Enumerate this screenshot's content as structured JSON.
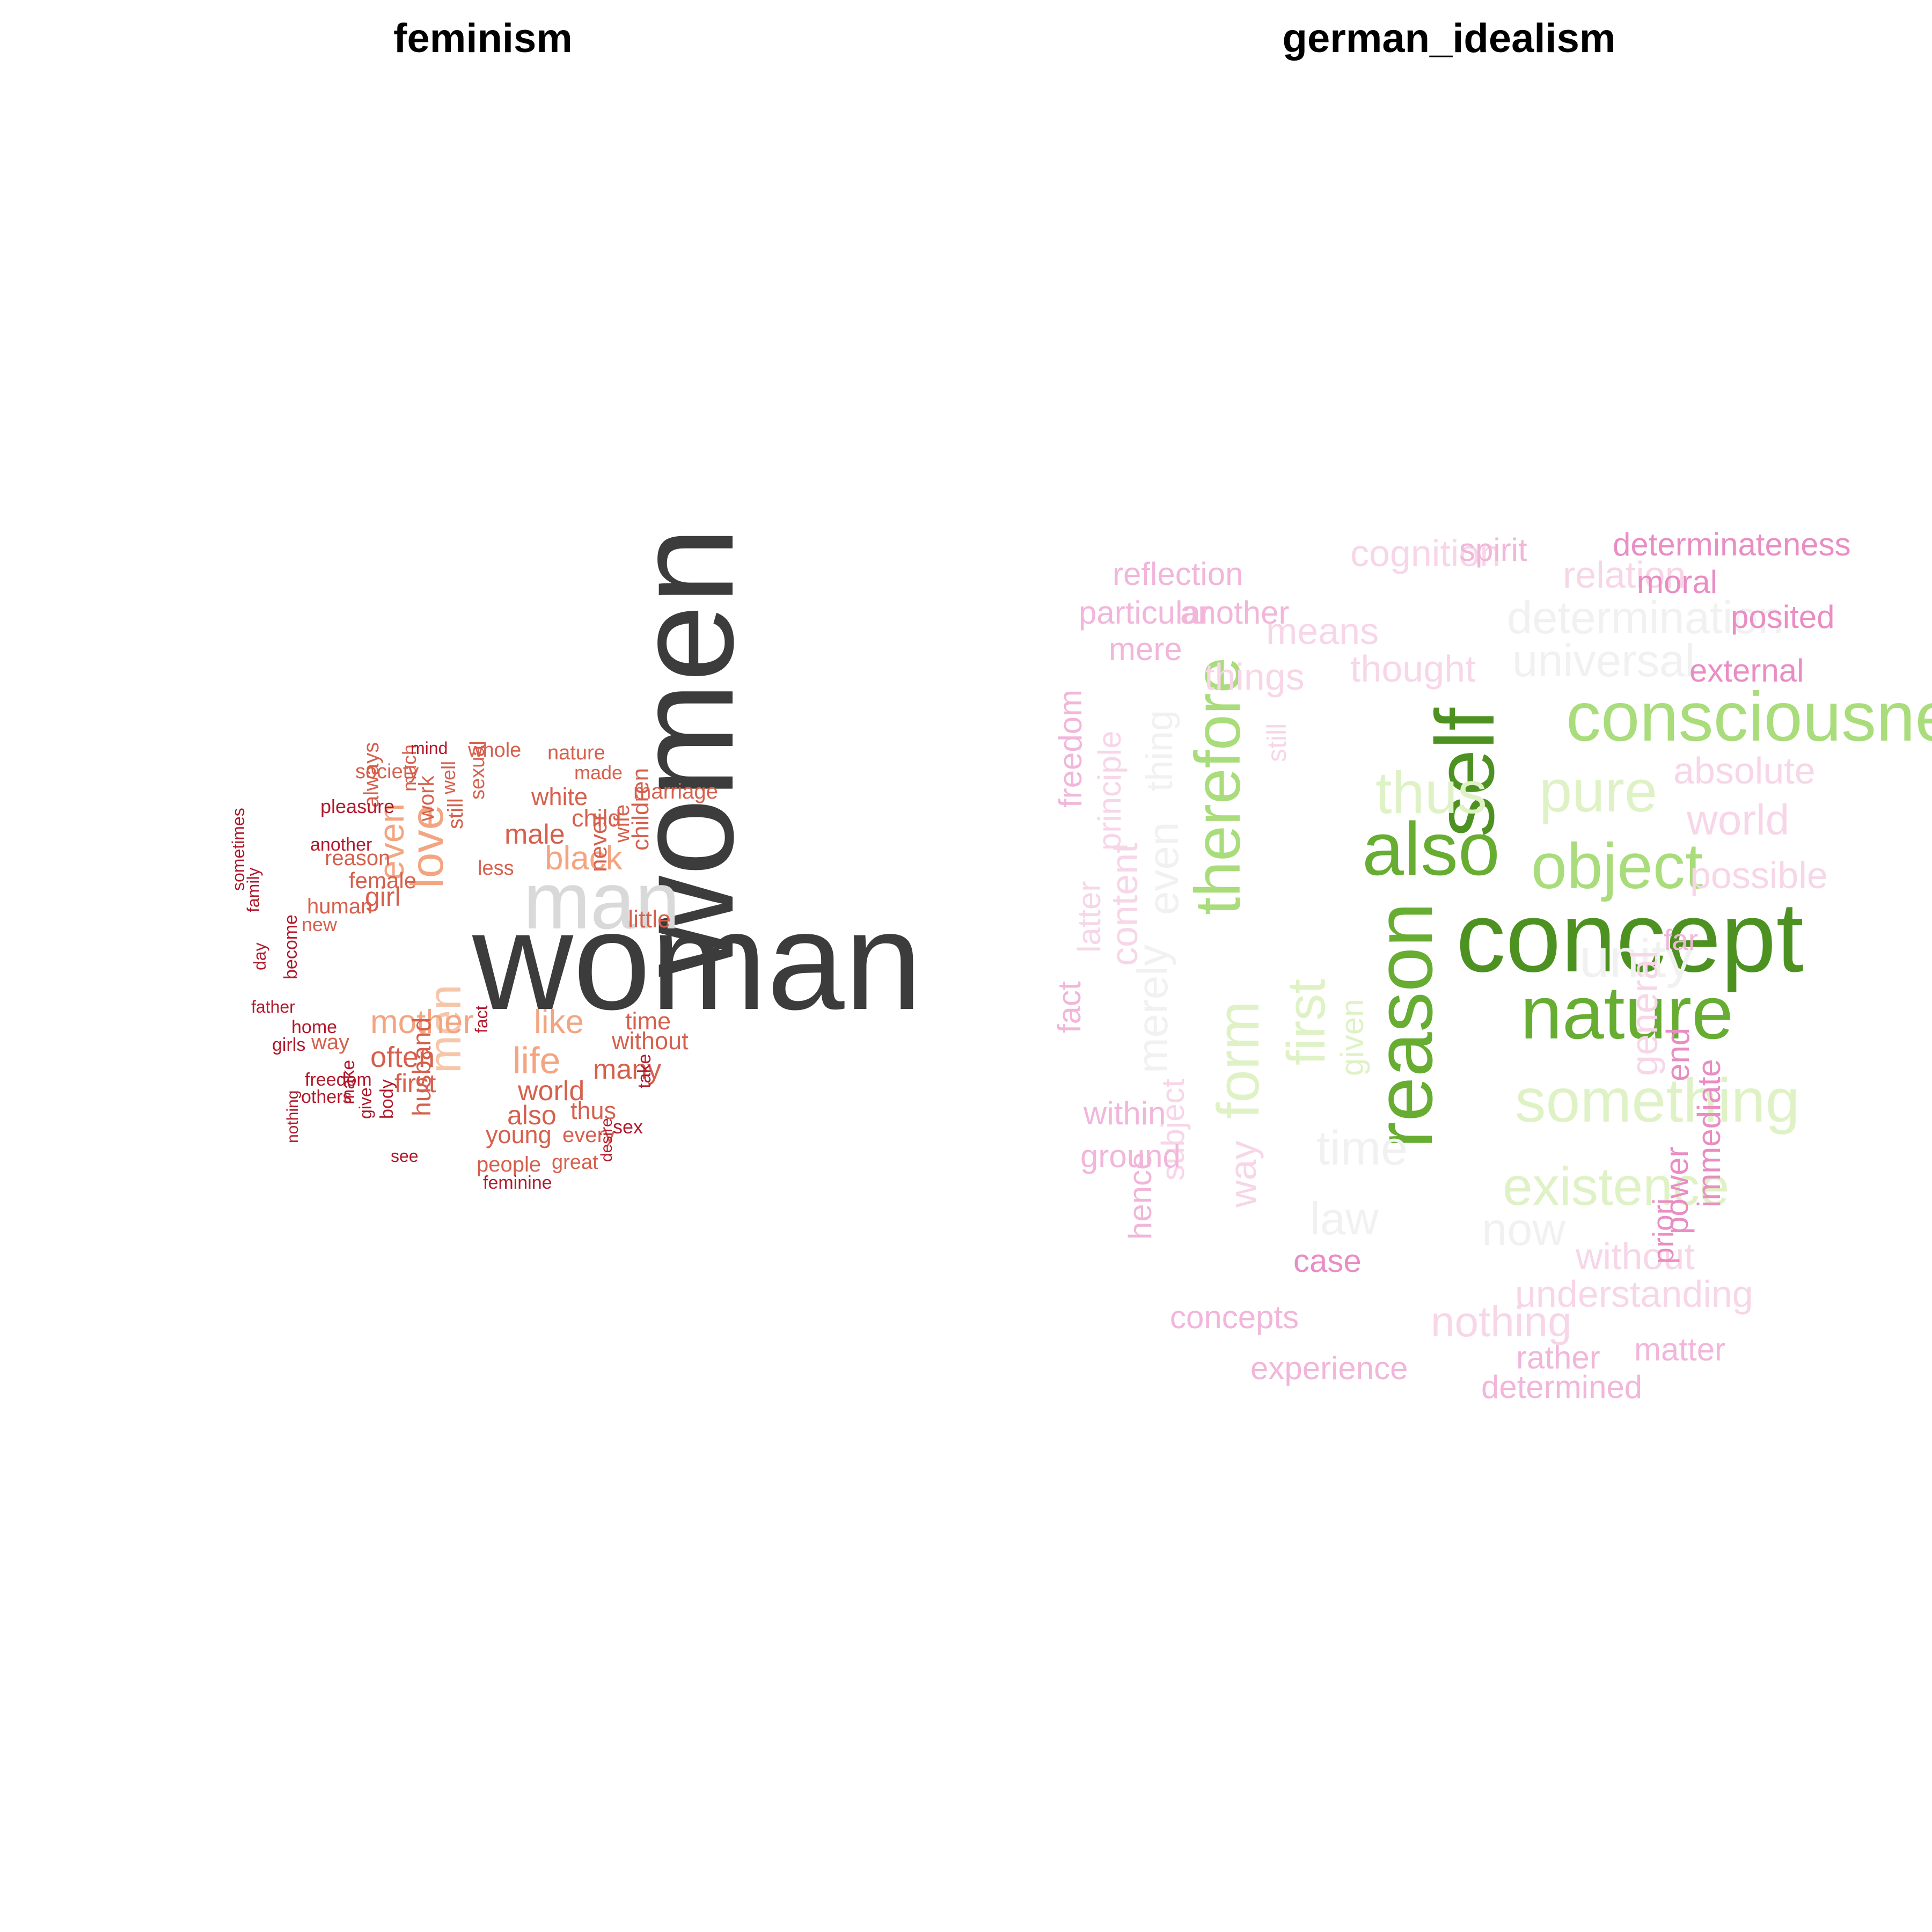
{
  "chart_data": [
    {
      "type": "wordcloud",
      "title": "feminism",
      "words": [
        {
          "text": "woman",
          "color": "#3c3c3c"
        },
        {
          "text": "women",
          "color": "#3c3c3c"
        },
        {
          "text": "man",
          "color": "#d9d9d9"
        },
        {
          "text": "men",
          "color": "#f6c6ab"
        },
        {
          "text": "love",
          "color": "#f3a582"
        },
        {
          "text": "even",
          "color": "#f3a582"
        },
        {
          "text": "black",
          "color": "#f3a582"
        },
        {
          "text": "mother",
          "color": "#f3a582"
        },
        {
          "text": "life",
          "color": "#f3a582"
        },
        {
          "text": "like",
          "color": "#f3a582"
        },
        {
          "text": "male",
          "color": "#d6604d"
        },
        {
          "text": "white",
          "color": "#d6604d"
        },
        {
          "text": "child",
          "color": "#d6604d"
        },
        {
          "text": "marriage",
          "color": "#d6604d"
        },
        {
          "text": "girl",
          "color": "#d6604d"
        },
        {
          "text": "often",
          "color": "#d6604d"
        },
        {
          "text": "world",
          "color": "#d6604d"
        },
        {
          "text": "many",
          "color": "#d6604d"
        },
        {
          "text": "without",
          "color": "#d6604d"
        },
        {
          "text": "time",
          "color": "#d6604d"
        },
        {
          "text": "first",
          "color": "#d6604d"
        },
        {
          "text": "also",
          "color": "#d6604d"
        },
        {
          "text": "thus",
          "color": "#d6604d"
        },
        {
          "text": "young",
          "color": "#d6604d"
        },
        {
          "text": "every",
          "color": "#d6604d"
        },
        {
          "text": "people",
          "color": "#d6604d"
        },
        {
          "text": "great",
          "color": "#d6604d"
        },
        {
          "text": "husband",
          "color": "#d6604d"
        },
        {
          "text": "little",
          "color": "#d6604d"
        },
        {
          "text": "children",
          "color": "#d6604d"
        },
        {
          "text": "never",
          "color": "#d6604d"
        },
        {
          "text": "wife",
          "color": "#d6604d"
        },
        {
          "text": "made",
          "color": "#d6604d"
        },
        {
          "text": "nature",
          "color": "#d6604d"
        },
        {
          "text": "whole",
          "color": "#d6604d"
        },
        {
          "text": "society",
          "color": "#d6604d"
        },
        {
          "text": "always",
          "color": "#d6604d"
        },
        {
          "text": "much",
          "color": "#d6604d"
        },
        {
          "text": "work",
          "color": "#d6604d"
        },
        {
          "text": "still",
          "color": "#d6604d"
        },
        {
          "text": "well",
          "color": "#d6604d"
        },
        {
          "text": "sexual",
          "color": "#d6604d"
        },
        {
          "text": "less",
          "color": "#d6604d"
        },
        {
          "text": "reason",
          "color": "#d6604d"
        },
        {
          "text": "female",
          "color": "#d6604d"
        },
        {
          "text": "human",
          "color": "#d6604d"
        },
        {
          "text": "new",
          "color": "#d6604d"
        },
        {
          "text": "way",
          "color": "#d6604d"
        },
        {
          "text": "mind",
          "color": "#b2182b"
        },
        {
          "text": "pleasure",
          "color": "#b2182b"
        },
        {
          "text": "another",
          "color": "#b2182b"
        },
        {
          "text": "sometimes",
          "color": "#b2182b"
        },
        {
          "text": "family",
          "color": "#b2182b"
        },
        {
          "text": "day",
          "color": "#b2182b"
        },
        {
          "text": "become",
          "color": "#b2182b"
        },
        {
          "text": "father",
          "color": "#b2182b"
        },
        {
          "text": "home",
          "color": "#b2182b"
        },
        {
          "text": "girls",
          "color": "#b2182b"
        },
        {
          "text": "freedom",
          "color": "#b2182b"
        },
        {
          "text": "others",
          "color": "#b2182b"
        },
        {
          "text": "nothing",
          "color": "#b2182b"
        },
        {
          "text": "make",
          "color": "#b2182b"
        },
        {
          "text": "give",
          "color": "#b2182b"
        },
        {
          "text": "body",
          "color": "#b2182b"
        },
        {
          "text": "see",
          "color": "#b2182b"
        },
        {
          "text": "fact",
          "color": "#b2182b"
        },
        {
          "text": "feminine",
          "color": "#b2182b"
        },
        {
          "text": "desire",
          "color": "#b2182b"
        },
        {
          "text": "sex",
          "color": "#b2182b"
        },
        {
          "text": "take",
          "color": "#b2182b"
        }
      ]
    },
    {
      "type": "wordcloud",
      "title": "german_idealism",
      "words": [
        {
          "text": "concept",
          "color": "#4d9221"
        },
        {
          "text": "self",
          "color": "#4d9221"
        },
        {
          "text": "reason",
          "color": "#66ad32"
        },
        {
          "text": "also",
          "color": "#66ad32"
        },
        {
          "text": "nature",
          "color": "#66ad32"
        },
        {
          "text": "consciousness",
          "color": "#a9dc7a"
        },
        {
          "text": "therefore",
          "color": "#a9dc7a"
        },
        {
          "text": "object",
          "color": "#a9dc7a"
        },
        {
          "text": "form",
          "color": "#dff2c6"
        },
        {
          "text": "thus",
          "color": "#dff2c6"
        },
        {
          "text": "pure",
          "color": "#dff2c6"
        },
        {
          "text": "first",
          "color": "#dff2c6"
        },
        {
          "text": "something",
          "color": "#dff2c6"
        },
        {
          "text": "existence",
          "color": "#dff2c6"
        },
        {
          "text": "given",
          "color": "#dff2c6"
        },
        {
          "text": "determination",
          "color": "#f1f1f1"
        },
        {
          "text": "universal",
          "color": "#f1f1f1"
        },
        {
          "text": "unity",
          "color": "#f1f1f1"
        },
        {
          "text": "time",
          "color": "#f1f1f1"
        },
        {
          "text": "law",
          "color": "#f1f1f1"
        },
        {
          "text": "now",
          "color": "#f1f1f1"
        },
        {
          "text": "even",
          "color": "#f1f1f1"
        },
        {
          "text": "merely",
          "color": "#f1f1f1"
        },
        {
          "text": "thing",
          "color": "#f1f1f1"
        },
        {
          "text": "cognition",
          "color": "#f7d6e8"
        },
        {
          "text": "relation",
          "color": "#f7d6e8"
        },
        {
          "text": "means",
          "color": "#f7d6e8"
        },
        {
          "text": "thought",
          "color": "#f7d6e8"
        },
        {
          "text": "things",
          "color": "#f7d6e8"
        },
        {
          "text": "absolute",
          "color": "#f7d6e8"
        },
        {
          "text": "world",
          "color": "#f7d6e8"
        },
        {
          "text": "possible",
          "color": "#f7d6e8"
        },
        {
          "text": "understanding",
          "color": "#f7d6e8"
        },
        {
          "text": "without",
          "color": "#f7d6e8"
        },
        {
          "text": "nothing",
          "color": "#f7d6e8"
        },
        {
          "text": "principle",
          "color": "#f7d6e8"
        },
        {
          "text": "content",
          "color": "#f7d6e8"
        },
        {
          "text": "latter",
          "color": "#f7d6e8"
        },
        {
          "text": "subject",
          "color": "#f7d6e8"
        },
        {
          "text": "general",
          "color": "#f7d6e8"
        },
        {
          "text": "way",
          "color": "#f7d6e8"
        },
        {
          "text": "still",
          "color": "#f7d6e8"
        },
        {
          "text": "reflection",
          "color": "#f1b6da"
        },
        {
          "text": "spirit",
          "color": "#f1b6da"
        },
        {
          "text": "particular",
          "color": "#f1b6da"
        },
        {
          "text": "another",
          "color": "#f1b6da"
        },
        {
          "text": "mere",
          "color": "#f1b6da"
        },
        {
          "text": "freedom",
          "color": "#f1b6da"
        },
        {
          "text": "fact",
          "color": "#f1b6da"
        },
        {
          "text": "within",
          "color": "#f1b6da"
        },
        {
          "text": "ground",
          "color": "#f1b6da"
        },
        {
          "text": "hence",
          "color": "#f1b6da"
        },
        {
          "text": "concepts",
          "color": "#f1b6da"
        },
        {
          "text": "experience",
          "color": "#f1b6da"
        },
        {
          "text": "determined",
          "color": "#f1b6da"
        },
        {
          "text": "rather",
          "color": "#f1b6da"
        },
        {
          "text": "matter",
          "color": "#f1b6da"
        },
        {
          "text": "far",
          "color": "#f1b6da"
        },
        {
          "text": "case",
          "color": "#e98dc4"
        },
        {
          "text": "determinateness",
          "color": "#e98dc4"
        },
        {
          "text": "moral",
          "color": "#e98dc4"
        },
        {
          "text": "posited",
          "color": "#e98dc4"
        },
        {
          "text": "external",
          "color": "#e98dc4"
        },
        {
          "text": "end",
          "color": "#e98dc4"
        },
        {
          "text": "immediate",
          "color": "#e98dc4"
        },
        {
          "text": "power",
          "color": "#e98dc4"
        },
        {
          "text": "priori",
          "color": "#e98dc4"
        }
      ]
    }
  ]
}
